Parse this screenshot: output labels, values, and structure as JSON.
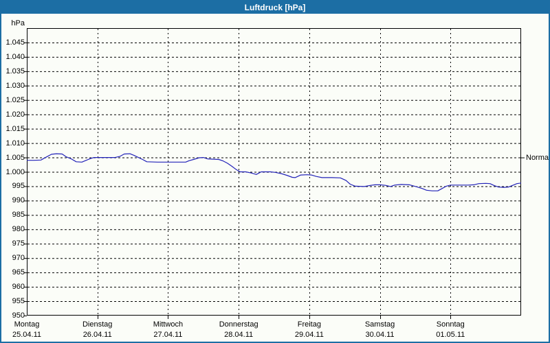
{
  "window": {
    "title": "Luftdruck [hPa]"
  },
  "colors": {
    "titlebar": "#1c6ea4",
    "window_border": "#1c6ea4",
    "background": "#fbfdf8",
    "plot_frame": "#000000",
    "grid": "#000000",
    "series_line": "#2121b8",
    "title_text": "#ffffff",
    "axis_text": "#000000"
  },
  "chart_data": {
    "type": "line",
    "title": "Luftdruck [hPa]",
    "unit_label": "hPa",
    "ylim": [
      950,
      1050
    ],
    "grid": true,
    "legend": "none",
    "y_ticks": [
      {
        "v": 1045,
        "label": "1.045"
      },
      {
        "v": 1040,
        "label": "1.040"
      },
      {
        "v": 1035,
        "label": "1.035"
      },
      {
        "v": 1030,
        "label": "1.030"
      },
      {
        "v": 1025,
        "label": "1.025"
      },
      {
        "v": 1020,
        "label": "1.020"
      },
      {
        "v": 1015,
        "label": "1.015"
      },
      {
        "v": 1010,
        "label": "1.010"
      },
      {
        "v": 1005,
        "label": "1.005"
      },
      {
        "v": 1000,
        "label": "1.000"
      },
      {
        "v": 995,
        "label": "995"
      },
      {
        "v": 990,
        "label": "990"
      },
      {
        "v": 985,
        "label": "985"
      },
      {
        "v": 980,
        "label": "980"
      },
      {
        "v": 975,
        "label": "975"
      },
      {
        "v": 970,
        "label": "970"
      },
      {
        "v": 965,
        "label": "965"
      },
      {
        "v": 960,
        "label": "960"
      },
      {
        "v": 955,
        "label": "955"
      },
      {
        "v": 950,
        "label": "950"
      }
    ],
    "x_days": [
      {
        "name": "Montag",
        "date": "25.04.11"
      },
      {
        "name": "Dienstag",
        "date": "26.04.11"
      },
      {
        "name": "Mittwoch",
        "date": "27.04.11"
      },
      {
        "name": "Donnerstag",
        "date": "28.04.11"
      },
      {
        "name": "Freitag",
        "date": "29.04.11"
      },
      {
        "name": "Samstag",
        "date": "30.04.11"
      },
      {
        "name": "Sonntag",
        "date": "01.05.11"
      }
    ],
    "x_range_days": [
      0,
      7
    ],
    "annotations": [
      {
        "label": "Normal",
        "v": 1005,
        "side": "right"
      }
    ],
    "series": [
      {
        "name": "Luftdruck",
        "color": "#2121b8",
        "points": [
          [
            0,
            1004
          ],
          [
            0.1,
            1004
          ],
          [
            0.2,
            1004.1
          ],
          [
            0.28,
            1005.2
          ],
          [
            0.35,
            1006.1
          ],
          [
            0.42,
            1006.3
          ],
          [
            0.5,
            1006.2
          ],
          [
            0.56,
            1005.2
          ],
          [
            0.63,
            1004.5
          ],
          [
            0.7,
            1003.5
          ],
          [
            0.78,
            1003.4
          ],
          [
            0.84,
            1004
          ],
          [
            0.9,
            1004.6
          ],
          [
            0.95,
            1005
          ],
          [
            1.1,
            1005
          ],
          [
            1.25,
            1005
          ],
          [
            1.32,
            1005.4
          ],
          [
            1.38,
            1006.2
          ],
          [
            1.46,
            1006.3
          ],
          [
            1.52,
            1005.7
          ],
          [
            1.58,
            1005
          ],
          [
            1.64,
            1004.3
          ],
          [
            1.7,
            1003.5
          ],
          [
            1.85,
            1003.4
          ],
          [
            2,
            1003.4
          ],
          [
            2.15,
            1003.4
          ],
          [
            2.25,
            1003.4
          ],
          [
            2.3,
            1003.9
          ],
          [
            2.36,
            1004.3
          ],
          [
            2.44,
            1004.9
          ],
          [
            2.5,
            1005
          ],
          [
            2.56,
            1004.5
          ],
          [
            2.65,
            1004.4
          ],
          [
            2.72,
            1004.3
          ],
          [
            2.78,
            1003.8
          ],
          [
            2.84,
            1003
          ],
          [
            2.9,
            1002
          ],
          [
            2.96,
            1000.9
          ],
          [
            3.02,
            1000
          ],
          [
            3.1,
            1000
          ],
          [
            3.18,
            999.6
          ],
          [
            3.25,
            999.1
          ],
          [
            3.32,
            1000
          ],
          [
            3.45,
            1000
          ],
          [
            3.52,
            999.8
          ],
          [
            3.6,
            999.4
          ],
          [
            3.68,
            998.8
          ],
          [
            3.76,
            998.1
          ],
          [
            3.8,
            998
          ],
          [
            3.88,
            998.9
          ],
          [
            3.97,
            999
          ],
          [
            4.03,
            998.9
          ],
          [
            4.1,
            998.4
          ],
          [
            4.18,
            998
          ],
          [
            4.32,
            998
          ],
          [
            4.44,
            997.9
          ],
          [
            4.52,
            997
          ],
          [
            4.58,
            995.7
          ],
          [
            4.65,
            995
          ],
          [
            4.78,
            994.9
          ],
          [
            4.87,
            995.3
          ],
          [
            4.93,
            995.5
          ],
          [
            5,
            995.5
          ],
          [
            5.08,
            995.3
          ],
          [
            5.15,
            994.9
          ],
          [
            5.21,
            995.4
          ],
          [
            5.3,
            995.6
          ],
          [
            5.42,
            995.5
          ],
          [
            5.52,
            994.8
          ],
          [
            5.6,
            994.2
          ],
          [
            5.66,
            993.6
          ],
          [
            5.74,
            993.4
          ],
          [
            5.82,
            993.4
          ],
          [
            5.88,
            994.2
          ],
          [
            5.94,
            995
          ],
          [
            6,
            995.4
          ],
          [
            6.12,
            995.4
          ],
          [
            6.25,
            995.4
          ],
          [
            6.33,
            995.5
          ],
          [
            6.4,
            995.9
          ],
          [
            6.5,
            996
          ],
          [
            6.56,
            995.9
          ],
          [
            6.62,
            995.2
          ],
          [
            6.68,
            994.7
          ],
          [
            6.76,
            994.6
          ],
          [
            6.82,
            994.7
          ],
          [
            6.89,
            995.4
          ],
          [
            6.94,
            995.9
          ],
          [
            7,
            996.1
          ]
        ]
      }
    ]
  }
}
